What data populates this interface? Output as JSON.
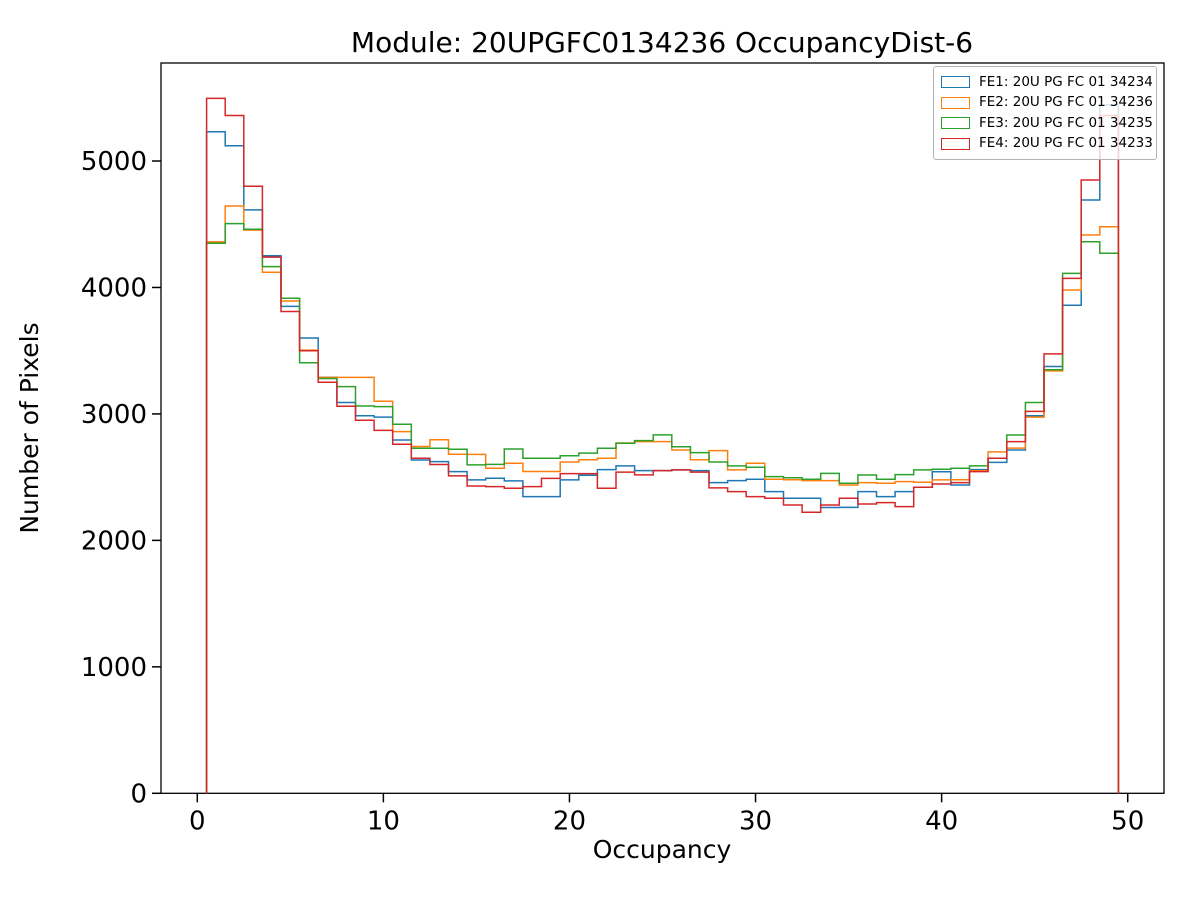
{
  "chart_data": {
    "type": "step-histogram",
    "title": "Module: 20UPGFC0134236 OccupancyDist-6",
    "xlabel": "Occupancy",
    "ylabel": "Number of Pixels",
    "xlim": [
      -1.95,
      51.95
    ],
    "ylim": [
      0,
      5775
    ],
    "xticks": [
      0,
      10,
      20,
      30,
      40,
      50
    ],
    "yticks": [
      0,
      1000,
      2000,
      3000,
      4000,
      5000
    ],
    "grid": false,
    "legend_position": "upper right",
    "bin_start": 0.5,
    "bin_width": 1,
    "bin_count": 49,
    "series": [
      {
        "name": "FE1: 20U PG FC 01 34234",
        "color": "#1f77b4",
        "values": [
          5232,
          5120,
          4613,
          4250,
          3850,
          3600,
          3290,
          3090,
          2985,
          2975,
          2794,
          2636,
          2623,
          2544,
          2478,
          2491,
          2470,
          2346,
          2346,
          2478,
          2515,
          2560,
          2589,
          2552,
          2552,
          2557,
          2552,
          2457,
          2473,
          2483,
          2386,
          2333,
          2333,
          2260,
          2261,
          2386,
          2346,
          2386,
          2420,
          2543,
          2438,
          2560,
          2617,
          2715,
          2985,
          3375,
          3860,
          4692,
          5443
        ]
      },
      {
        "name": "FE2: 20U PG FC 01 34236",
        "color": "#ff7f0e",
        "values": [
          4360,
          4644,
          4454,
          4120,
          3893,
          3505,
          3289,
          3289,
          3289,
          3100,
          2860,
          2742,
          2795,
          2681,
          2680,
          2570,
          2610,
          2545,
          2545,
          2620,
          2637,
          2650,
          2770,
          2781,
          2781,
          2715,
          2637,
          2710,
          2557,
          2610,
          2483,
          2480,
          2473,
          2473,
          2438,
          2457,
          2451,
          2465,
          2460,
          2478,
          2480,
          2550,
          2700,
          2730,
          2975,
          3340,
          3980,
          4415,
          4480
        ]
      },
      {
        "name": "FE3: 20U PG FC 01 34235",
        "color": "#2ca02c",
        "values": [
          4350,
          4505,
          4460,
          4165,
          3914,
          3405,
          3280,
          3216,
          3063,
          3058,
          2918,
          2729,
          2729,
          2721,
          2597,
          2601,
          2723,
          2650,
          2650,
          2670,
          2690,
          2729,
          2768,
          2789,
          2834,
          2741,
          2694,
          2620,
          2589,
          2578,
          2504,
          2495,
          2483,
          2530,
          2451,
          2517,
          2483,
          2520,
          2557,
          2562,
          2570,
          2589,
          2650,
          2833,
          3090,
          3350,
          4111,
          4362,
          4270
        ]
      },
      {
        "name": "FE4: 20U PG FC 01 34233",
        "color": "#d62728",
        "values": [
          5495,
          5360,
          4800,
          4240,
          3810,
          3500,
          3250,
          3060,
          2950,
          2870,
          2760,
          2650,
          2600,
          2510,
          2430,
          2425,
          2412,
          2425,
          2490,
          2528,
          2528,
          2412,
          2540,
          2518,
          2552,
          2557,
          2540,
          2415,
          2386,
          2346,
          2333,
          2280,
          2222,
          2280,
          2333,
          2288,
          2299,
          2267,
          2420,
          2446,
          2457,
          2544,
          2650,
          2781,
          3020,
          3475,
          4072,
          4850,
          5360
        ]
      }
    ]
  }
}
